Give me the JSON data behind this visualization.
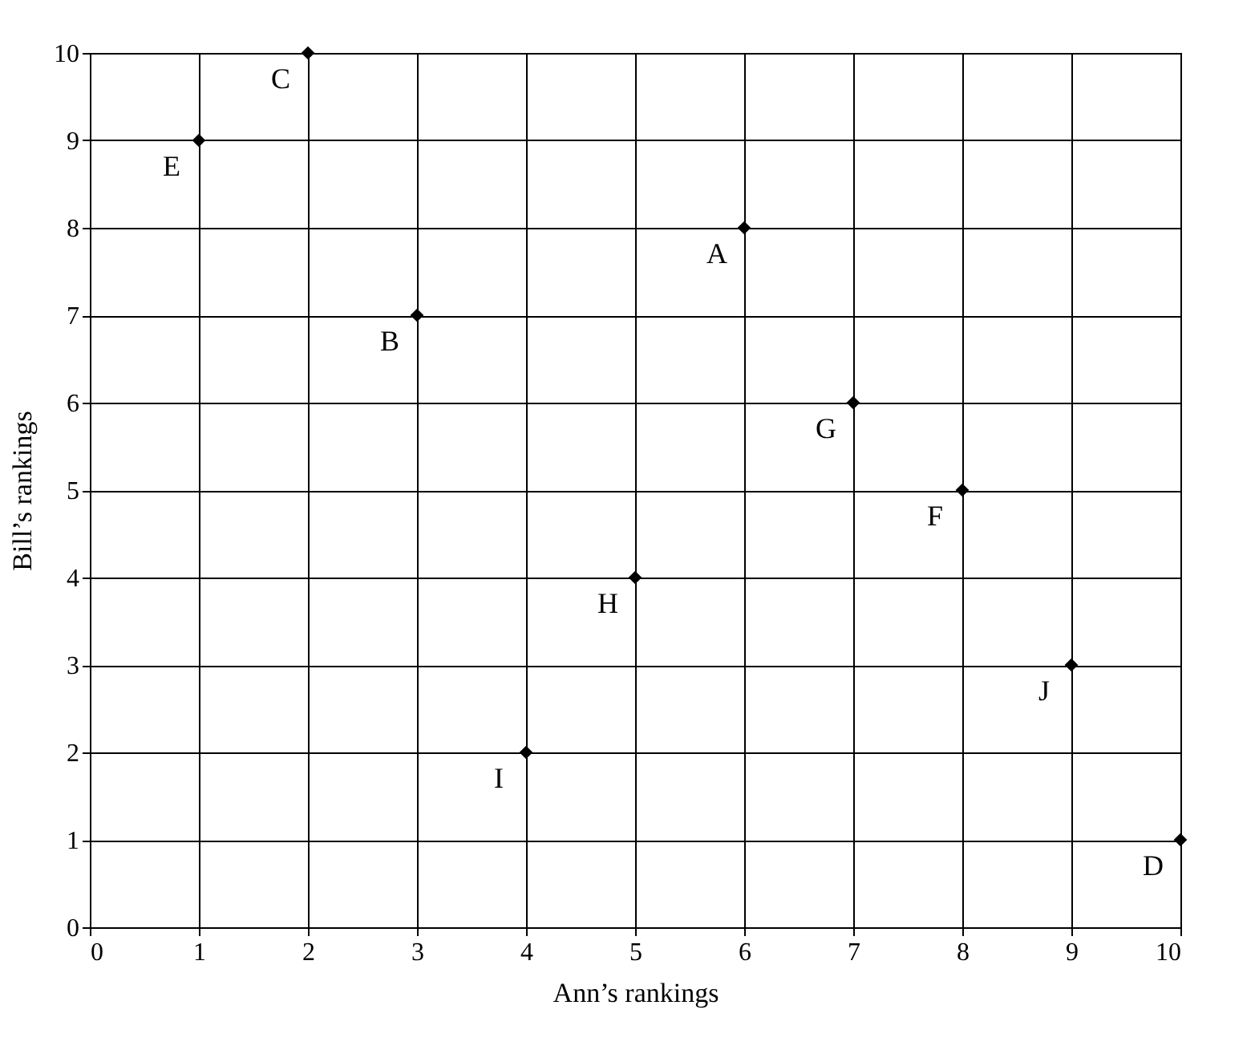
{
  "chart_data": {
    "type": "scatter",
    "xlabel": "Ann’s rankings",
    "ylabel": "Bill’s rankings",
    "x": [
      6,
      3,
      2,
      10,
      1,
      8,
      7,
      5,
      4,
      9
    ],
    "series": [
      {
        "color": "#000000",
        "values": [
          8,
          7,
          10,
          1,
          9,
          5,
          6,
          4,
          2,
          3
        ]
      }
    ],
    "annotations": [
      {
        "text": "A",
        "x": 6,
        "y": 8
      },
      {
        "text": "B",
        "x": 3,
        "y": 7
      },
      {
        "text": "C",
        "x": 2,
        "y": 10
      },
      {
        "text": "D",
        "x": 10,
        "y": 1
      },
      {
        "text": "E",
        "x": 1,
        "y": 9
      },
      {
        "text": "F",
        "x": 8,
        "y": 5
      },
      {
        "text": "G",
        "x": 7,
        "y": 6
      },
      {
        "text": "H",
        "x": 5,
        "y": 4
      },
      {
        "text": "I",
        "x": 4,
        "y": 2
      },
      {
        "text": "J",
        "x": 9,
        "y": 3
      }
    ],
    "xlim": [
      0,
      10
    ],
    "ylim": [
      0,
      10
    ],
    "xticks": [
      0,
      1,
      2,
      3,
      4,
      5,
      6,
      7,
      8,
      9,
      10
    ],
    "yticks": [
      0,
      1,
      2,
      3,
      4,
      5,
      6,
      7,
      8,
      9,
      10
    ],
    "grid": true,
    "marker": "diamond"
  }
}
